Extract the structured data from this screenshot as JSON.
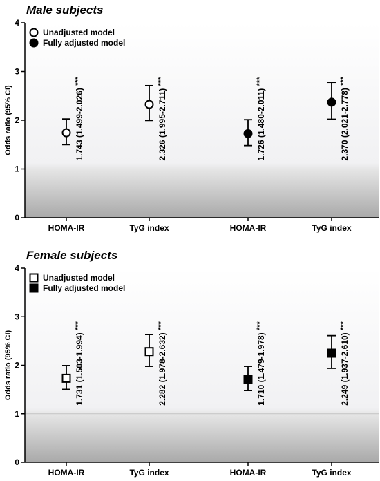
{
  "chart_data": [
    {
      "type": "scatter",
      "title": "Male subjects",
      "ylabel": "Odds ratio (95% CI)",
      "ylim": [
        0,
        4
      ],
      "yticks": [
        "0",
        "1",
        "2",
        "3",
        "4"
      ],
      "reference_line": 1,
      "marker": "circle",
      "categories": [
        "HOMA-IR",
        "TyG index",
        "HOMA-IR",
        "TyG index"
      ],
      "legend": [
        {
          "name": "Unadjusted model",
          "filled": false
        },
        {
          "name": "Fully adjusted model",
          "filled": true
        }
      ],
      "legend_position": "top-left",
      "points": [
        {
          "category": "HOMA-IR",
          "model": "Unadjusted model",
          "filled": false,
          "or": 1.743,
          "lo": 1.499,
          "hi": 2.026,
          "label": "1.743 (1.499-2.026)",
          "sig": "***"
        },
        {
          "category": "TyG index",
          "model": "Unadjusted model",
          "filled": false,
          "or": 2.326,
          "lo": 1.995,
          "hi": 2.711,
          "label": "2.326 (1.995-2.711)",
          "sig": "***"
        },
        {
          "category": "HOMA-IR",
          "model": "Fully adjusted model",
          "filled": true,
          "or": 1.726,
          "lo": 1.48,
          "hi": 2.011,
          "label": "1.726 (1.480-2.011)",
          "sig": "***"
        },
        {
          "category": "TyG index",
          "model": "Fully adjusted model",
          "filled": true,
          "or": 2.37,
          "lo": 2.021,
          "hi": 2.778,
          "label": "2.370 (2.021-2.778)",
          "sig": "***"
        }
      ]
    },
    {
      "type": "scatter",
      "title": "Female subjects",
      "ylabel": "Odds ratio (95% CI)",
      "ylim": [
        0,
        4
      ],
      "yticks": [
        "0",
        "1",
        "2",
        "3",
        "4"
      ],
      "reference_line": 1,
      "marker": "square",
      "categories": [
        "HOMA-IR",
        "TyG index",
        "HOMA-IR",
        "TyG index"
      ],
      "legend": [
        {
          "name": "Unadjusted model",
          "filled": false
        },
        {
          "name": "Fully adjusted model",
          "filled": true
        }
      ],
      "legend_position": "top-left",
      "points": [
        {
          "category": "HOMA-IR",
          "model": "Unadjusted model",
          "filled": false,
          "or": 1.731,
          "lo": 1.503,
          "hi": 1.994,
          "label": "1.731 (1.503-1.994)",
          "sig": "***"
        },
        {
          "category": "TyG index",
          "model": "Unadjusted model",
          "filled": false,
          "or": 2.282,
          "lo": 1.978,
          "hi": 2.632,
          "label": "2.282 (1.978-2.632)",
          "sig": "***"
        },
        {
          "category": "HOMA-IR",
          "model": "Fully adjusted model",
          "filled": true,
          "or": 1.71,
          "lo": 1.479,
          "hi": 1.978,
          "label": "1.710 (1.479-1.978)",
          "sig": "***"
        },
        {
          "category": "TyG index",
          "model": "Fully adjusted model",
          "filled": true,
          "or": 2.249,
          "lo": 1.937,
          "hi": 2.61,
          "label": "2.249 (1.937-2.610)",
          "sig": "***"
        }
      ]
    }
  ]
}
